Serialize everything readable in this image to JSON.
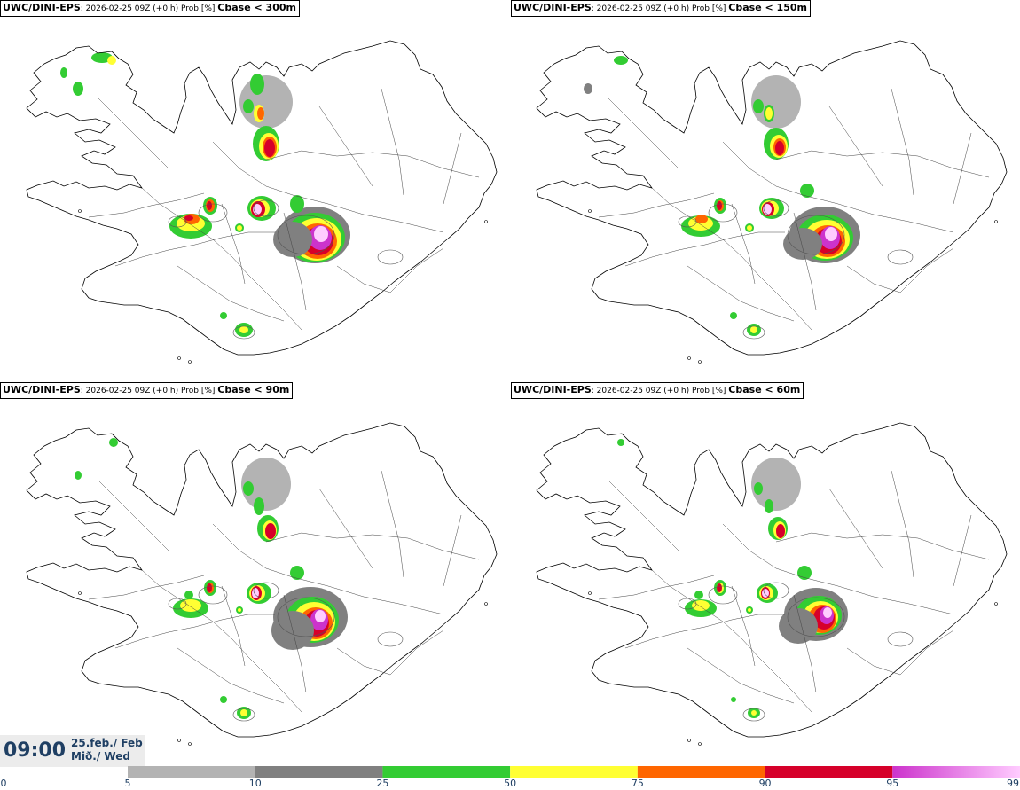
{
  "panels": [
    {
      "model": "UWC/DINI-EPS",
      "meta": ": 2026-02-25 09Z (+0 h) Prob [%] ",
      "level": "Cbase < 300m"
    },
    {
      "model": "UWC/DINI-EPS",
      "meta": ": 2026-02-25 09Z (+0 h) Prob [%] ",
      "level": "Cbase < 150m"
    },
    {
      "model": "UWC/DINI-EPS",
      "meta": ": 2026-02-25 09Z (+0 h) Prob [%] ",
      "level": "Cbase < 90m"
    },
    {
      "model": "UWC/DINI-EPS",
      "meta": ": 2026-02-25 09Z (+0 h) Prob [%] ",
      "level": "Cbase < 60m"
    }
  ],
  "valid_time": {
    "time": "09:00",
    "date_line1": "25.feb./ Feb",
    "date_line2": "Mið./ Wed"
  },
  "colorbar": {
    "ticks": [
      "0",
      "5",
      "10",
      "25",
      "50",
      "75",
      "90",
      "95",
      "99"
    ],
    "bins": [
      {
        "from": 5,
        "to": 10,
        "color": "#b3b3b3"
      },
      {
        "from": 10,
        "to": 25,
        "color": "#808080"
      },
      {
        "from": 25,
        "to": 50,
        "color": "#33cc33"
      },
      {
        "from": 50,
        "to": 75,
        "color": "#ffff33"
      },
      {
        "from": 75,
        "to": 90,
        "color": "#ff6600"
      },
      {
        "from": 90,
        "to": 95,
        "color": "#d6002a"
      },
      {
        "from": 95,
        "to": 99,
        "color": "#cc33cc",
        "to_color": "#ffccff"
      }
    ],
    "tick_color": "#1f3f63"
  }
}
